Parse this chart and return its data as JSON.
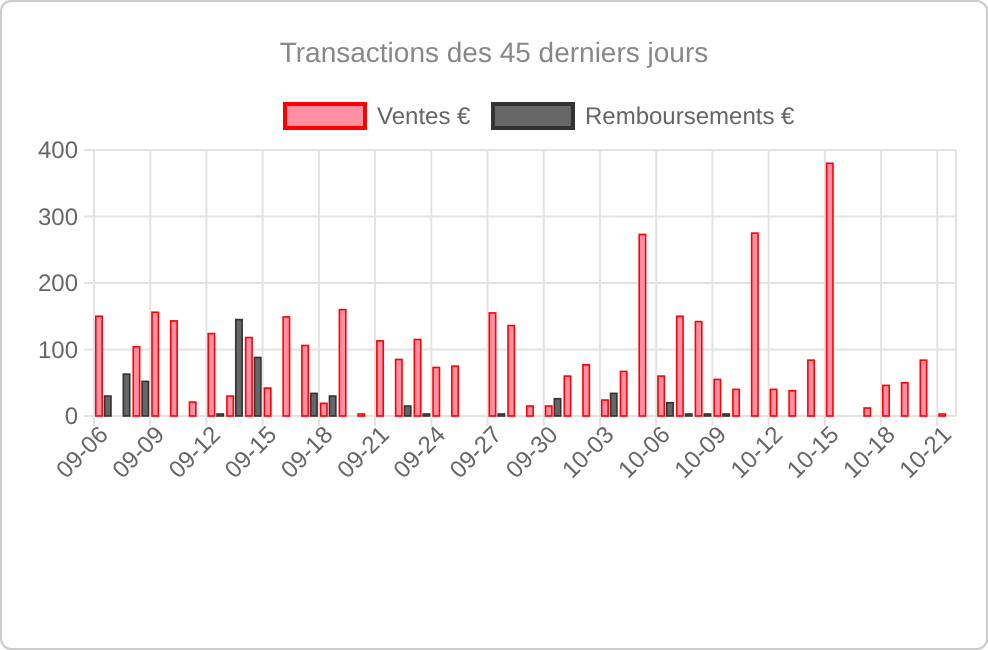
{
  "chart_data": {
    "type": "bar",
    "title": "Transactions des 45 derniers jours",
    "categories": [
      "09-06",
      null,
      null,
      "09-09",
      null,
      null,
      "09-12",
      null,
      null,
      "09-15",
      null,
      null,
      "09-18",
      null,
      null,
      "09-21",
      null,
      null,
      "09-24",
      null,
      null,
      "09-27",
      null,
      null,
      "09-30",
      null,
      null,
      "10-03",
      null,
      null,
      "10-06",
      null,
      null,
      "10-09",
      null,
      null,
      "10-12",
      null,
      null,
      "10-15",
      null,
      null,
      "10-18",
      null,
      null,
      "10-21"
    ],
    "series": [
      {
        "name": "Ventes €",
        "color": "#ff8fa3",
        "values": [
          150,
          null,
          104,
          156,
          143,
          21,
          124,
          30,
          118,
          42,
          149,
          106,
          19,
          160,
          3,
          113,
          85,
          115,
          73,
          75,
          null,
          155,
          136,
          15,
          15,
          60,
          77,
          24,
          67,
          273,
          60,
          150,
          142,
          55,
          40,
          275,
          40,
          38,
          84,
          380,
          null,
          12,
          46,
          50,
          84,
          3
        ]
      },
      {
        "name": "Remboursements €",
        "color": "#666666",
        "values": [
          30,
          63,
          52,
          null,
          null,
          null,
          3,
          145,
          88,
          null,
          null,
          34,
          30,
          null,
          null,
          null,
          15,
          3,
          null,
          null,
          null,
          3,
          null,
          null,
          26,
          null,
          null,
          34,
          null,
          null,
          20,
          3,
          3,
          3,
          null,
          null,
          null,
          null,
          null,
          null,
          null,
          null,
          null,
          null,
          null,
          null
        ]
      }
    ],
    "ylim": [
      0,
      400
    ],
    "yticks": [
      0,
      100,
      200,
      300,
      400
    ],
    "grid": true,
    "legend": "top"
  }
}
